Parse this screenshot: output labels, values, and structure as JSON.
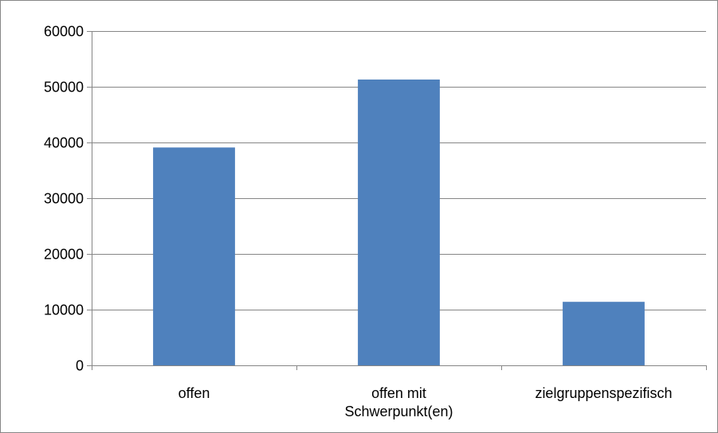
{
  "chart_data": {
    "type": "bar",
    "categories": [
      "offen",
      "offen mit Schwerpunkt(en)",
      "zielgruppenspezifisch"
    ],
    "category_label_lines": [
      [
        "offen"
      ],
      [
        "offen mit",
        "Schwerpunkt(en)"
      ],
      [
        "zielgruppenspezifisch"
      ]
    ],
    "values": [
      39100,
      51300,
      11400
    ],
    "ylim": [
      0,
      60000
    ],
    "yticks": [
      0,
      10000,
      20000,
      30000,
      40000,
      50000,
      60000
    ],
    "ytick_labels": [
      "0",
      "10000",
      "20000",
      "30000",
      "40000",
      "50000",
      "60000"
    ],
    "title": "",
    "xlabel": "",
    "ylabel": "",
    "grid": true,
    "legend": "none",
    "colors": {
      "bar": "#4f81bd",
      "grid": "#868686",
      "axis": "#868686",
      "text": "#000000",
      "border": "#868686"
    }
  }
}
